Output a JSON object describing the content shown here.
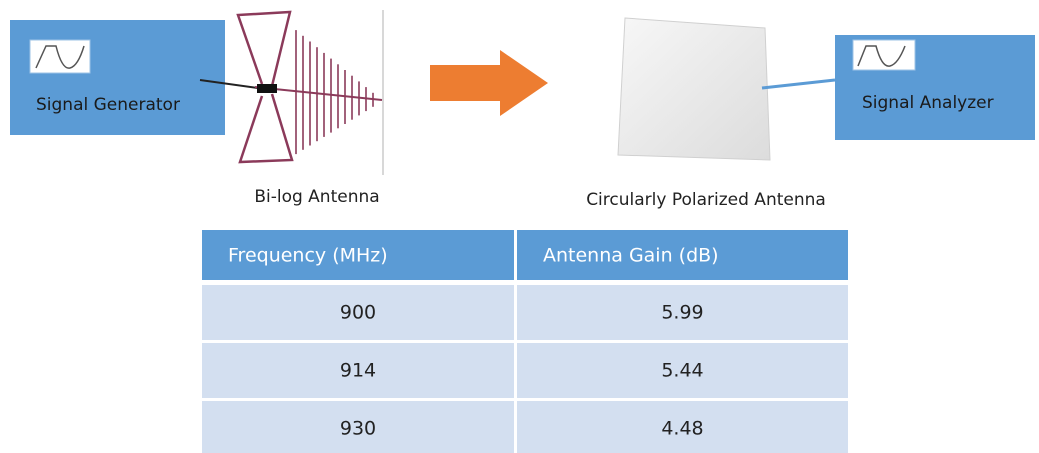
{
  "blocks": {
    "signal_generator": "Signal Generator",
    "signal_analyzer": "Signal Analyzer"
  },
  "antennas": {
    "bilog": "Bi-log Antenna",
    "circular": "Circularly Polarized Antenna"
  },
  "table": {
    "columns": [
      "Frequency (MHz)",
      "Antenna Gain (dB)"
    ],
    "rows": [
      [
        900,
        5.99
      ],
      [
        914,
        5.44
      ],
      [
        930,
        4.48
      ]
    ]
  }
}
